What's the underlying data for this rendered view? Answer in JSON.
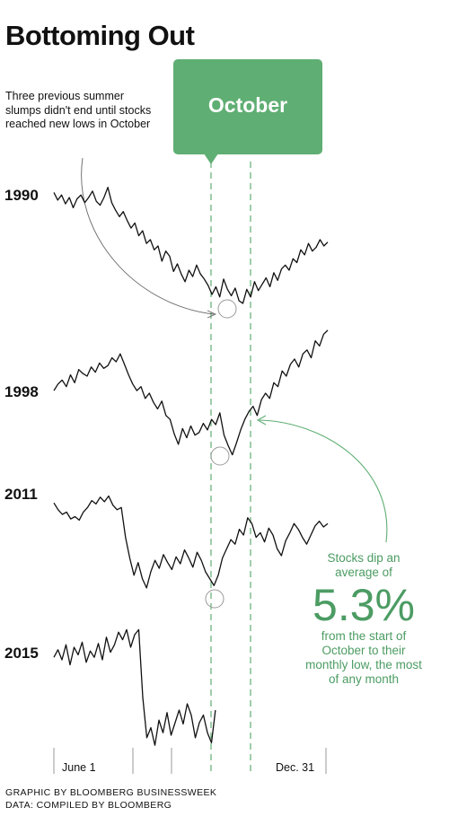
{
  "title": "Bottoming Out",
  "note": "Three previous summer slumps didn't end until stocks reached new lows in October",
  "badge": "October",
  "annotation": {
    "line_1": "Stocks dip an",
    "line_2": "average of",
    "value": "5.3%",
    "line_3": "from the start of",
    "line_4": "October to their",
    "line_5": "monthly low, the most",
    "line_6": "of any month"
  },
  "credits": {
    "graphic": "GRAPHIC BY BLOOMBERG BUSINESSWEEK",
    "data": "DATA: COMPILED BY BLOOMBERG"
  },
  "colors": {
    "accent": "#5fae73",
    "accent_text": "#4c9c63",
    "line": "#111111",
    "circle": "#999999"
  },
  "chart_data": {
    "type": "line",
    "title": "Bottoming Out",
    "x_tick_labels": [
      "June 1",
      "Dec. 31"
    ],
    "x_range": [
      "June 1",
      "Dec. 31"
    ],
    "highlight_period": "October",
    "y_axis": "none (each year drawn on its own unlabeled scale)",
    "grid": false,
    "series": [
      {
        "name": "1990",
        "x_end": 1.0,
        "values": [
          0.92,
          0.86,
          0.9,
          0.83,
          0.88,
          0.8,
          0.87,
          0.9,
          0.84,
          0.88,
          0.93,
          0.85,
          0.82,
          0.88,
          0.96,
          0.84,
          0.78,
          0.73,
          0.77,
          0.7,
          0.64,
          0.68,
          0.58,
          0.62,
          0.52,
          0.55,
          0.47,
          0.5,
          0.38,
          0.46,
          0.42,
          0.3,
          0.36,
          0.28,
          0.22,
          0.31,
          0.26,
          0.35,
          0.28,
          0.24,
          0.19,
          0.12,
          0.18,
          0.1,
          0.24,
          0.16,
          0.11,
          0.17,
          0.07,
          0.05,
          0.16,
          0.1,
          0.22,
          0.15,
          0.2,
          0.25,
          0.18,
          0.29,
          0.23,
          0.32,
          0.35,
          0.31,
          0.4,
          0.37,
          0.47,
          0.43,
          0.52,
          0.46,
          0.49,
          0.55,
          0.5,
          0.53
        ]
      },
      {
        "name": "1998",
        "x_end": 1.0,
        "values": [
          0.52,
          0.57,
          0.6,
          0.55,
          0.64,
          0.58,
          0.68,
          0.65,
          0.63,
          0.7,
          0.66,
          0.73,
          0.69,
          0.71,
          0.77,
          0.74,
          0.8,
          0.72,
          0.64,
          0.57,
          0.52,
          0.55,
          0.46,
          0.5,
          0.43,
          0.38,
          0.44,
          0.33,
          0.3,
          0.19,
          0.11,
          0.23,
          0.16,
          0.25,
          0.18,
          0.2,
          0.27,
          0.22,
          0.3,
          0.26,
          0.35,
          0.18,
          0.1,
          0.03,
          0.12,
          0.22,
          0.3,
          0.36,
          0.4,
          0.33,
          0.45,
          0.5,
          0.46,
          0.58,
          0.55,
          0.67,
          0.63,
          0.72,
          0.76,
          0.7,
          0.8,
          0.83,
          0.77,
          0.9,
          0.86,
          0.95,
          0.98
        ]
      },
      {
        "name": "2011",
        "x_end": 1.0,
        "values": [
          0.78,
          0.72,
          0.68,
          0.7,
          0.64,
          0.66,
          0.63,
          0.7,
          0.74,
          0.8,
          0.77,
          0.83,
          0.79,
          0.84,
          0.76,
          0.72,
          0.74,
          0.48,
          0.3,
          0.15,
          0.26,
          0.12,
          0.04,
          0.18,
          0.28,
          0.21,
          0.33,
          0.26,
          0.2,
          0.31,
          0.25,
          0.37,
          0.3,
          0.22,
          0.35,
          0.28,
          0.18,
          0.12,
          0.06,
          0.15,
          0.3,
          0.38,
          0.46,
          0.42,
          0.55,
          0.5,
          0.65,
          0.6,
          0.48,
          0.52,
          0.44,
          0.56,
          0.5,
          0.38,
          0.32,
          0.45,
          0.52,
          0.6,
          0.55,
          0.48,
          0.42,
          0.5,
          0.58,
          0.62,
          0.57,
          0.6
        ]
      },
      {
        "name": "2015",
        "x_end": 0.59,
        "values": [
          0.72,
          0.78,
          0.7,
          0.82,
          0.66,
          0.8,
          0.74,
          0.84,
          0.68,
          0.77,
          0.72,
          0.83,
          0.7,
          0.88,
          0.76,
          0.82,
          0.92,
          0.86,
          0.94,
          0.8,
          0.9,
          0.94,
          0.4,
          0.08,
          0.16,
          0.02,
          0.22,
          0.12,
          0.28,
          0.1,
          0.2,
          0.3,
          0.19,
          0.35,
          0.26,
          0.08,
          0.2,
          0.26,
          0.12,
          0.04,
          0.3
        ]
      }
    ]
  }
}
